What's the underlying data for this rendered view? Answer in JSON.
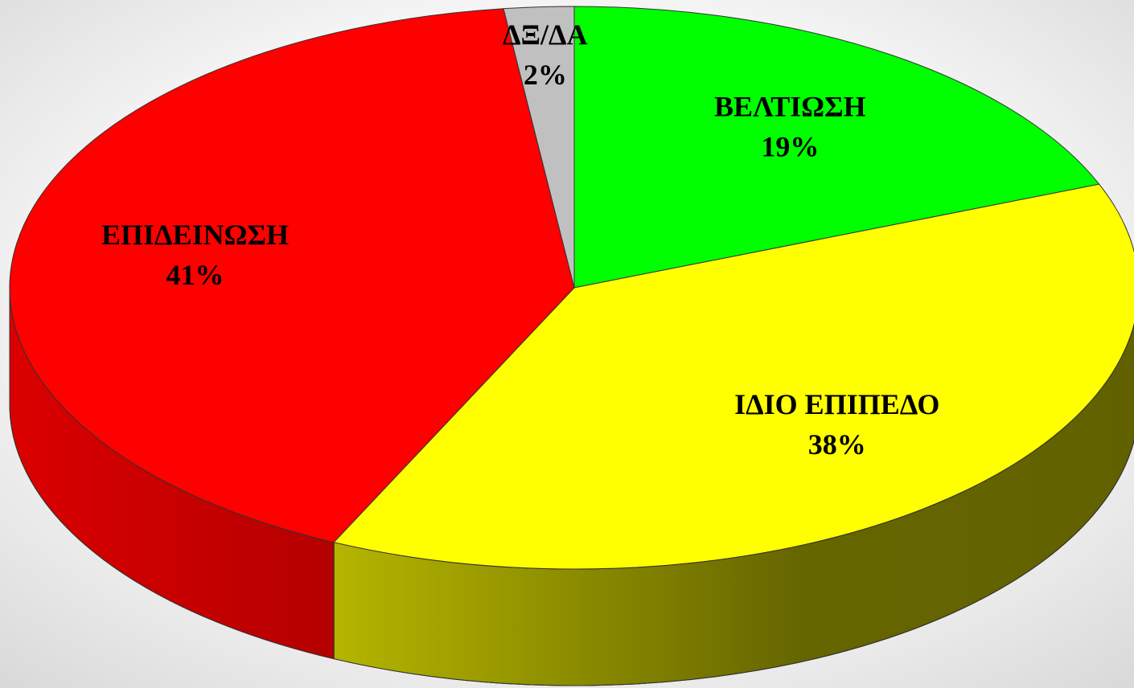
{
  "chart_data": {
    "type": "pie3d",
    "categories": [
      "ΒΕΛΤΙΩΣΗ",
      "ΙΔΙΟ ΕΠΙΠΕΔΟ",
      "ΕΠΙΔΕΙΝΩΣΗ",
      "ΔΞ/ΔΑ"
    ],
    "values": [
      19,
      38,
      41,
      2
    ],
    "value_labels": [
      "19%",
      "38%",
      "41%",
      "2%"
    ],
    "colors": [
      "#00ff00",
      "#ffff00",
      "#ff0000",
      "#c0c0c0"
    ]
  }
}
